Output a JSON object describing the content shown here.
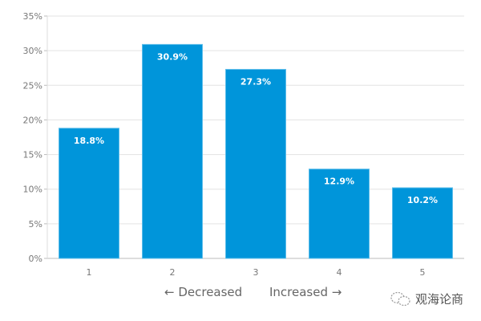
{
  "chart_data": {
    "type": "bar",
    "categories": [
      "1",
      "2",
      "3",
      "4",
      "5"
    ],
    "values": [
      18.8,
      30.9,
      27.3,
      12.9,
      10.2
    ],
    "data_labels": [
      "18.8%",
      "30.9%",
      "27.3%",
      "12.9%",
      "10.2%"
    ],
    "title": "",
    "xlabel_left": "← Decreased",
    "xlabel_right": "Increased →",
    "ylabel": "",
    "ylim": [
      0,
      35
    ],
    "yticks": [
      "0%",
      "5%",
      "10%",
      "15%",
      "20%",
      "25%",
      "30%",
      "35%"
    ],
    "grid": true,
    "bar_color": "#0095DA"
  },
  "watermark": {
    "text": "观海论商",
    "icon": "wechat-icon"
  }
}
